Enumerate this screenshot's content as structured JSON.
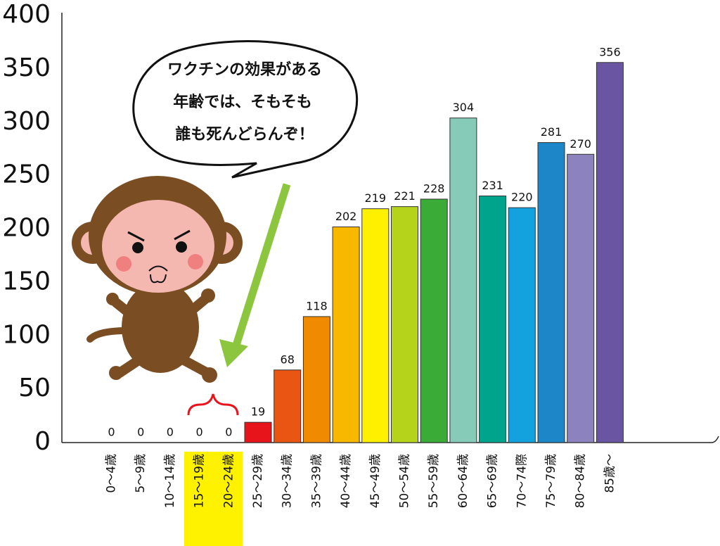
{
  "chart_data": {
    "type": "bar",
    "categories": [
      "0～4歳",
      "5～9歳",
      "10～14歳",
      "15～19歳",
      "20～24歳",
      "25～29歳",
      "30～34歳",
      "35～39歳",
      "40～44歳",
      "45～49歳",
      "50～54歳",
      "55～59歳",
      "60～64歳",
      "65～69歳",
      "70～74際",
      "75～79歳",
      "80～84歳",
      "85歳～"
    ],
    "values": [
      0,
      0,
      0,
      0,
      0,
      19,
      68,
      118,
      202,
      219,
      221,
      228,
      304,
      231,
      220,
      281,
      270,
      356
    ],
    "colors": [
      "#e8141c",
      "#e8141c",
      "#e8141c",
      "#e8141c",
      "#e8141c",
      "#e8141c",
      "#e95513",
      "#f08a00",
      "#f9b800",
      "#fff000",
      "#b5d31b",
      "#3aab37",
      "#86cab8",
      "#00a48d",
      "#13a2de",
      "#1d86c8",
      "#8c82bd",
      "#6a55a3"
    ],
    "ylim": [
      0,
      400
    ],
    "yticks": [
      0,
      50,
      100,
      150,
      200,
      250,
      300,
      350,
      400
    ],
    "annotation": [
      "ワクチンの効果がある",
      "年齢では、そもそも",
      "誰も死んどらんぞ！"
    ]
  }
}
